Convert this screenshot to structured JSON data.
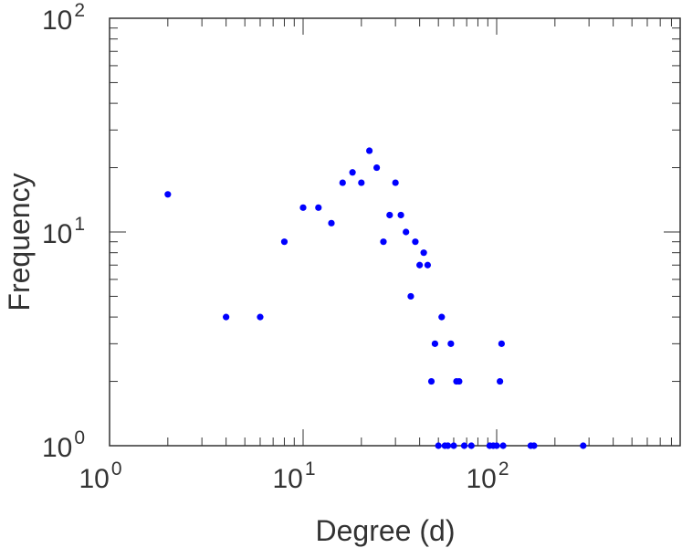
{
  "chart_data": {
    "type": "scatter",
    "title": "",
    "xlabel": "Degree (d)",
    "ylabel": "Frequency",
    "xscale": "log",
    "yscale": "log",
    "xlim": [
      1,
      1000
    ],
    "ylim": [
      1,
      100
    ],
    "grid": false,
    "legend": "none",
    "marker_color": "#0000ff",
    "x_ticks": [
      {
        "base": "10",
        "exp": "0"
      },
      {
        "base": "10",
        "exp": "1"
      },
      {
        "base": "10",
        "exp": "2"
      }
    ],
    "y_ticks": [
      {
        "base": "10",
        "exp": "0"
      },
      {
        "base": "10",
        "exp": "1"
      },
      {
        "base": "10",
        "exp": "2"
      }
    ],
    "series": [
      {
        "points": [
          [
            2,
            15
          ],
          [
            4,
            4
          ],
          [
            6,
            4
          ],
          [
            8,
            9
          ],
          [
            10,
            13
          ],
          [
            12,
            13
          ],
          [
            14,
            11
          ],
          [
            16,
            17
          ],
          [
            18,
            19
          ],
          [
            20,
            17
          ],
          [
            22,
            24
          ],
          [
            24,
            20
          ],
          [
            26,
            9
          ],
          [
            28,
            12
          ],
          [
            30,
            17
          ],
          [
            32,
            12
          ],
          [
            34,
            10
          ],
          [
            36,
            5
          ],
          [
            38,
            9
          ],
          [
            40,
            7
          ],
          [
            42,
            8
          ],
          [
            44,
            7
          ],
          [
            46,
            2
          ],
          [
            48,
            3
          ],
          [
            50,
            1
          ],
          [
            52,
            4
          ],
          [
            54,
            1
          ],
          [
            56,
            1
          ],
          [
            58,
            3
          ],
          [
            60,
            1
          ],
          [
            62,
            2
          ],
          [
            64,
            2
          ],
          [
            68,
            1
          ],
          [
            74,
            1
          ],
          [
            92,
            1
          ],
          [
            96,
            1
          ],
          [
            100,
            1
          ],
          [
            104,
            2
          ],
          [
            106,
            3
          ],
          [
            108,
            1
          ],
          [
            150,
            1
          ],
          [
            156,
            1
          ],
          [
            280,
            1
          ]
        ]
      }
    ]
  }
}
